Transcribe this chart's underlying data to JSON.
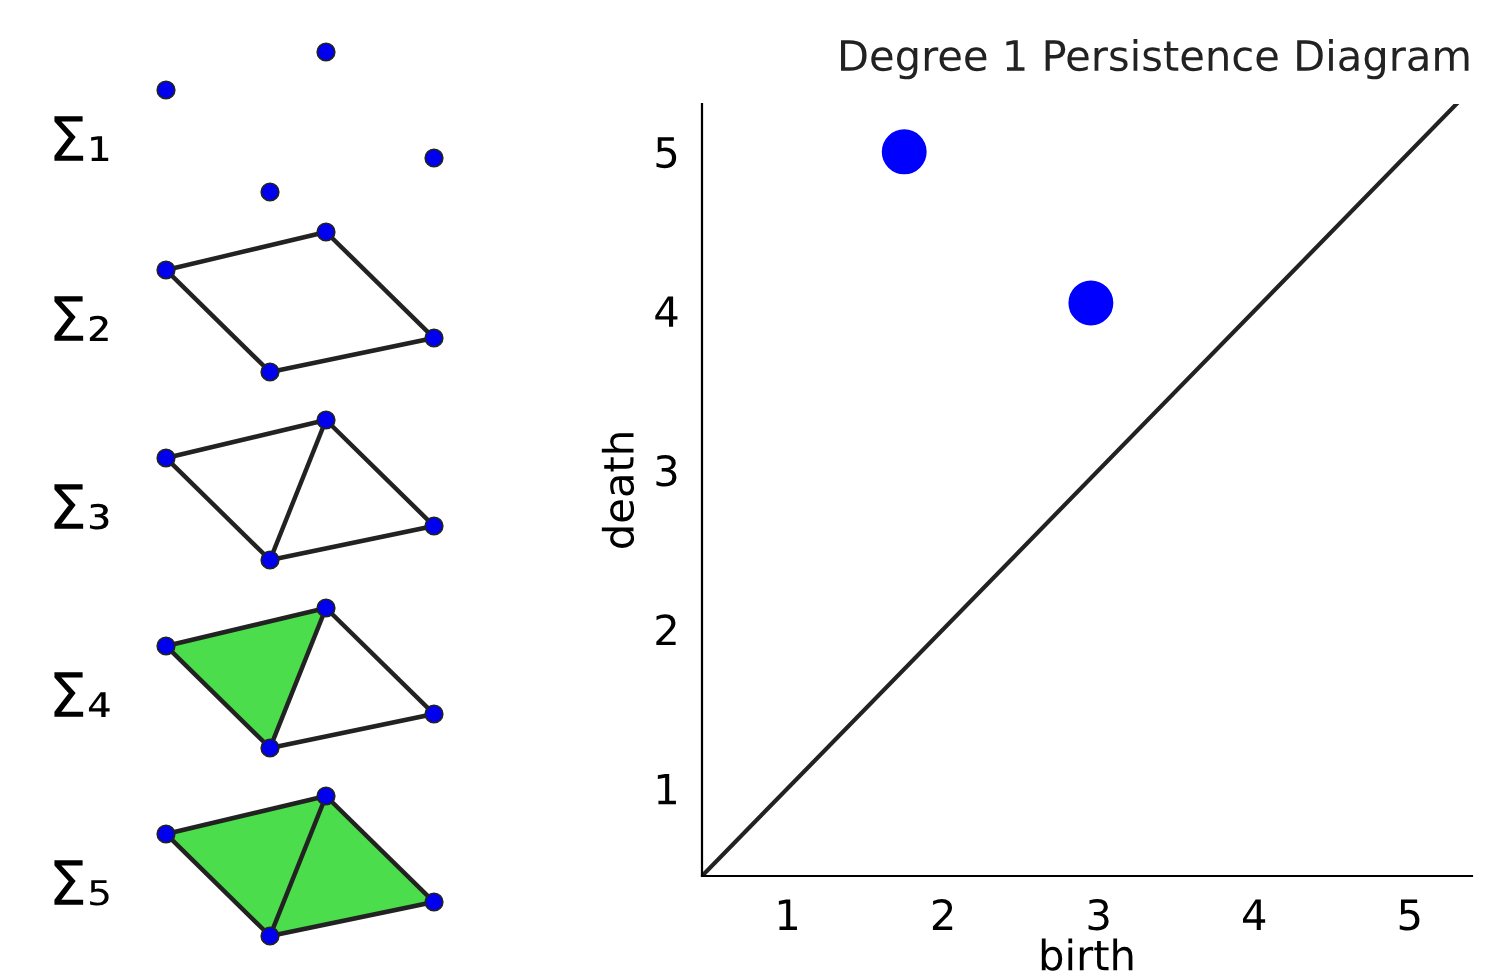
{
  "chart_data": {
    "type": "scatter",
    "title": "Degree 1 Persistence Diagram",
    "xlabel": "birth",
    "ylabel": "death",
    "series": [
      {
        "color": "#0000ff",
        "x": [
          1.75,
          2.95
        ],
        "values": [
          5.0,
          4.05
        ],
        "marker": "circle"
      },
      {
        "type": "line",
        "color": "#222222",
        "x": [
          0.45,
          5.3
        ],
        "values": [
          0.45,
          5.3
        ],
        "marker": "none",
        "line_style": "solid"
      }
    ],
    "xlim": [
      0.45,
      5.4
    ],
    "ylim": [
      0.45,
      5.3
    ],
    "xticks": [
      1,
      2,
      3,
      4,
      5
    ],
    "yticks": [
      1,
      2,
      3,
      4,
      5
    ],
    "grid": false,
    "legend": false,
    "annotations": [
      "Σ₁",
      "Σ₂",
      "Σ₃",
      "Σ₄",
      "Σ₅"
    ]
  }
}
